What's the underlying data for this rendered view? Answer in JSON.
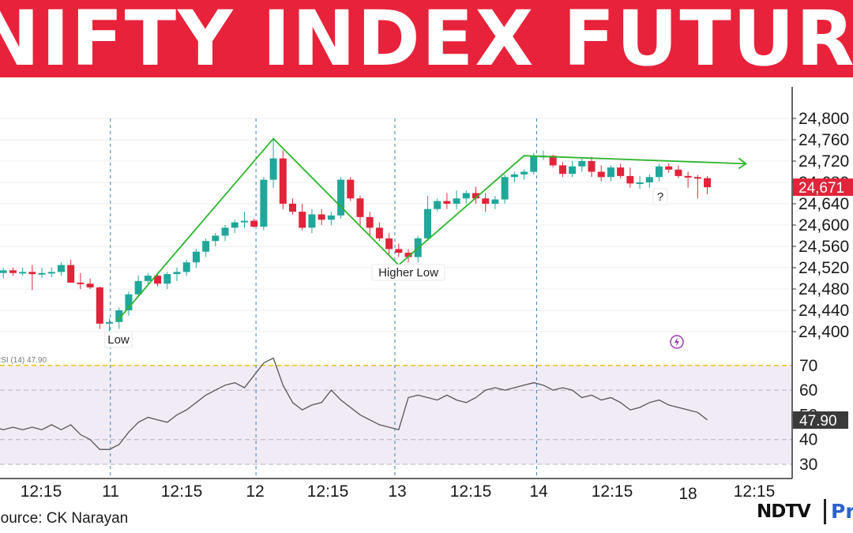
{
  "banner": {
    "title": "NIFTY INDEX FUTURES"
  },
  "footer": {
    "source": "Source: CK Narayan"
  },
  "logo": {
    "brand": "NDTV",
    "suffix": "Pro"
  },
  "colors": {
    "banner": "#e8223a",
    "up": "#1fa79a",
    "down": "#e0243a",
    "trend": "#2db52d",
    "rsi_line": "#555555",
    "rsi_band": "#f1ebf6",
    "rsi_overbought": "#f0c419"
  },
  "chart_data": {
    "type": "candlestick",
    "title": "NIFTY INDEX FUTURES",
    "price_axis": {
      "ticks": [
        24400,
        24440,
        24480,
        24520,
        24560,
        24600,
        24640,
        24680,
        24720,
        24760,
        24800
      ],
      "tick_labels": [
        "24,400",
        "24,440",
        "24,480",
        "24,520",
        "24,560",
        "24,600",
        "24,640",
        "24,680",
        "24,720",
        "24,760",
        "24,800"
      ],
      "last_price": 24671,
      "last_price_label": "24,671"
    },
    "time_axis": {
      "labels": [
        "12:15",
        "11",
        "12:15",
        "12",
        "12:15",
        "13",
        "12:15",
        "14",
        "12:15",
        "18",
        "12:15"
      ],
      "session_separators": [
        "11",
        "12",
        "13",
        "14"
      ]
    },
    "candles": [
      [
        24515,
        24525,
        24505,
        24510
      ],
      [
        24510,
        24520,
        24500,
        24515
      ],
      [
        24515,
        24520,
        24505,
        24510
      ],
      [
        24510,
        24520,
        24505,
        24512
      ],
      [
        24512,
        24525,
        24478,
        24508
      ],
      [
        24508,
        24520,
        24500,
        24510
      ],
      [
        24510,
        24520,
        24502,
        24512
      ],
      [
        24512,
        24530,
        24505,
        24525
      ],
      [
        24525,
        24535,
        24492,
        24492
      ],
      [
        24492,
        24510,
        24480,
        24490
      ],
      [
        24490,
        24500,
        24480,
        24483
      ],
      [
        24483,
        24485,
        24405,
        24415
      ],
      [
        24415,
        24425,
        24400,
        24418
      ],
      [
        24418,
        24445,
        24405,
        24440
      ],
      [
        24440,
        24475,
        24430,
        24470
      ],
      [
        24470,
        24505,
        24465,
        24495
      ],
      [
        24495,
        24510,
        24490,
        24505
      ],
      [
        24505,
        24510,
        24485,
        24490
      ],
      [
        24490,
        24512,
        24480,
        24508
      ],
      [
        24508,
        24520,
        24495,
        24512
      ],
      [
        24512,
        24535,
        24505,
        24530
      ],
      [
        24530,
        24555,
        24520,
        24550
      ],
      [
        24550,
        24575,
        24540,
        24570
      ],
      [
        24570,
        24585,
        24560,
        24580
      ],
      [
        24580,
        24600,
        24570,
        24595
      ],
      [
        24595,
        24610,
        24585,
        24605
      ],
      [
        24605,
        24625,
        24595,
        24608
      ],
      [
        24608,
        24612,
        24595,
        24597
      ],
      [
        24597,
        24690,
        24590,
        24685
      ],
      [
        24685,
        24760,
        24670,
        24725
      ],
      [
        24725,
        24740,
        24630,
        24640
      ],
      [
        24640,
        24650,
        24620,
        24625
      ],
      [
        24625,
        24640,
        24590,
        24595
      ],
      [
        24595,
        24630,
        24585,
        24620
      ],
      [
        24620,
        24630,
        24600,
        24610
      ],
      [
        24610,
        24625,
        24600,
        24618
      ],
      [
        24618,
        24690,
        24612,
        24685
      ],
      [
        24685,
        24690,
        24645,
        24650
      ],
      [
        24650,
        24655,
        24600,
        24615
      ],
      [
        24615,
        24625,
        24580,
        24595
      ],
      [
        24595,
        24605,
        24570,
        24575
      ],
      [
        24575,
        24585,
        24545,
        24555
      ],
      [
        24555,
        24565,
        24540,
        24548
      ],
      [
        24548,
        24555,
        24530,
        24540
      ],
      [
        24540,
        24580,
        24530,
        24575
      ],
      [
        24575,
        24655,
        24570,
        24630
      ],
      [
        24630,
        24650,
        24625,
        24645
      ],
      [
        24645,
        24660,
        24630,
        24640
      ],
      [
        24640,
        24665,
        24630,
        24650
      ],
      [
        24650,
        24665,
        24640,
        24660
      ],
      [
        24660,
        24672,
        24640,
        24650
      ],
      [
        24650,
        24660,
        24625,
        24640
      ],
      [
        24640,
        24655,
        24630,
        24648
      ],
      [
        24648,
        24695,
        24640,
        24690
      ],
      [
        24690,
        24700,
        24680,
        24695
      ],
      [
        24695,
        24705,
        24685,
        24700
      ],
      [
        24700,
        24735,
        24695,
        24730
      ],
      [
        24730,
        24740,
        24722,
        24730
      ],
      [
        24730,
        24732,
        24708,
        24712
      ],
      [
        24712,
        24718,
        24690,
        24696
      ],
      [
        24696,
        24720,
        24690,
        24710
      ],
      [
        24710,
        24725,
        24700,
        24720
      ],
      [
        24720,
        24728,
        24690,
        24700
      ],
      [
        24700,
        24712,
        24682,
        24690
      ],
      [
        24690,
        24712,
        24682,
        24708
      ],
      [
        24708,
        24715,
        24688,
        24692
      ],
      [
        24692,
        24708,
        24670,
        24678
      ],
      [
        24678,
        24692,
        24668,
        24680
      ],
      [
        24680,
        24695,
        24670,
        24690
      ],
      [
        24690,
        24715,
        24682,
        24710
      ],
      [
        24710,
        24716,
        24698,
        24704
      ],
      [
        24704,
        24712,
        24688,
        24692
      ],
      [
        24692,
        24700,
        24670,
        24690
      ],
      [
        24690,
        24694,
        24650,
        24688
      ],
      [
        24688,
        24692,
        24658,
        24671
      ]
    ],
    "trend_lines": [
      {
        "name": "zigzag",
        "points": [
          [
            12.8,
            24420
          ],
          [
            29,
            24762
          ],
          [
            42,
            24525
          ],
          [
            55,
            24730
          ],
          [
            78,
            24715
          ]
        ]
      }
    ],
    "annotations": [
      {
        "text": "Low",
        "candle": 12
      },
      {
        "text": "Higher Low",
        "candle": 42
      },
      {
        "text": "?",
        "candle": 74
      }
    ],
    "rsi": {
      "label": "RSI (14) 47.90",
      "last_value": 47.9,
      "last_value_label": "47.90",
      "ticks": [
        30,
        40,
        50,
        60,
        70
      ],
      "overbought": 70,
      "oversold": 30,
      "midline": 50,
      "values": [
        45,
        44,
        45,
        44,
        45,
        44,
        46,
        44,
        46,
        42,
        40,
        36,
        36,
        38,
        43,
        47,
        49,
        48,
        47,
        50,
        52,
        55,
        58,
        60,
        62,
        63,
        61,
        66,
        71,
        73,
        62,
        55,
        52,
        54,
        55,
        60,
        56,
        53,
        50,
        48,
        46,
        45,
        44,
        57,
        58,
        57,
        56,
        58,
        56,
        55,
        57,
        60,
        61,
        60,
        61,
        62,
        63,
        62,
        60,
        61,
        60,
        57,
        58,
        56,
        57,
        55,
        52,
        53,
        55,
        56,
        54,
        53,
        52,
        51,
        48
      ]
    }
  }
}
